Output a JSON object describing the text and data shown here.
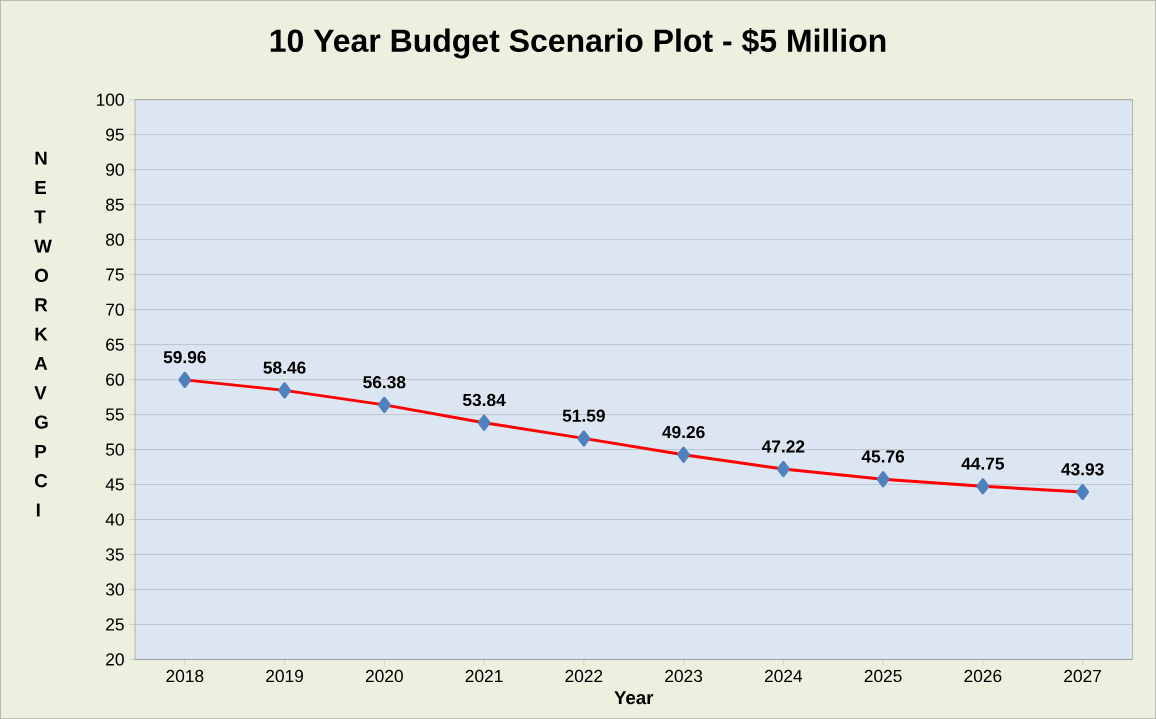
{
  "chart_data": {
    "type": "line",
    "title": "10 Year Budget Scenario Plot - $5 Million",
    "xlabel": "Year",
    "ylabel": "NETWORK AVG PCI",
    "categories": [
      "2018",
      "2019",
      "2020",
      "2021",
      "2022",
      "2023",
      "2024",
      "2025",
      "2026",
      "2027"
    ],
    "series": [
      {
        "color": "#ff0000",
        "colors": [
          "#4f81bd",
          "#4f81bd",
          "#4f81bd",
          "#4f81bd",
          "#4f81bd",
          "#4f81bd",
          "#4f81bd",
          "#4f81bd",
          "#4f81bd",
          "#4f81bd"
        ],
        "values": [
          59.96,
          58.46,
          56.38,
          53.84,
          51.59,
          49.26,
          47.22,
          45.76,
          44.75,
          43.93
        ]
      }
    ],
    "ylim": [
      20,
      100
    ],
    "yticks": [
      20,
      25,
      30,
      35,
      40,
      45,
      50,
      55,
      60,
      65,
      70,
      75,
      80,
      85,
      90,
      95,
      100
    ],
    "grid": "y",
    "marker": "diamond",
    "line_style": "solid",
    "data_labels": true
  }
}
